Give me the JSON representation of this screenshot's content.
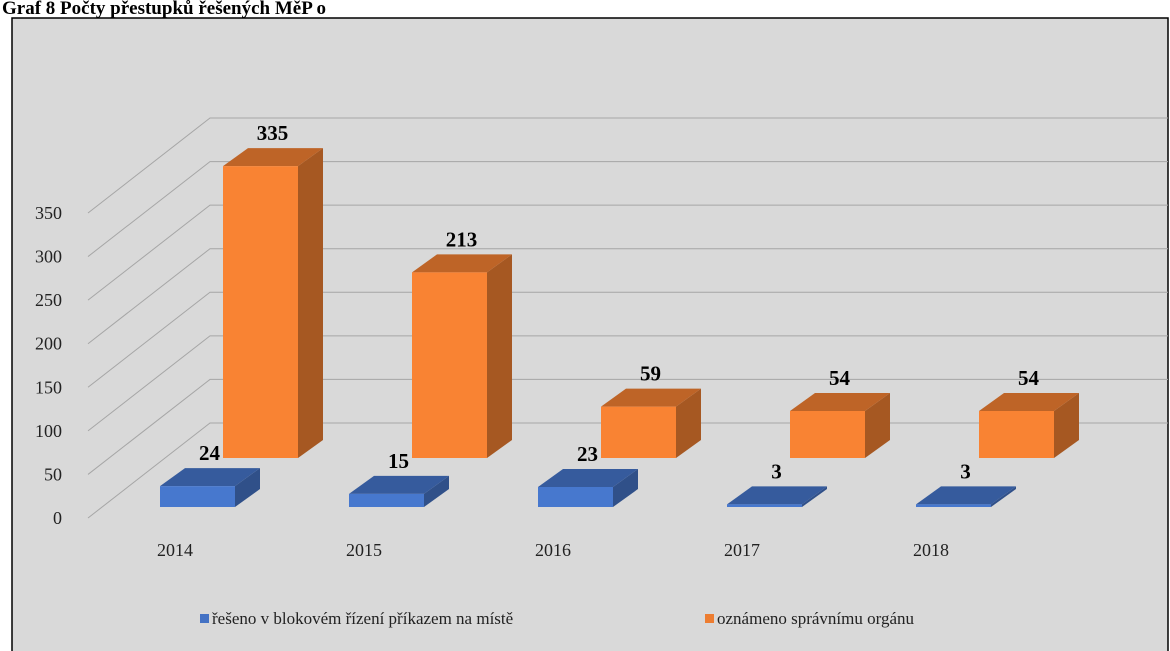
{
  "chart_data": {
    "type": "bar3d",
    "title": "Graf 8 Počty přestupků řešených MěP o",
    "categories": [
      "2014",
      "2015",
      "2016",
      "2017",
      "2018"
    ],
    "series": [
      {
        "name": "řešeno v blokovém řízení příkazem na místě",
        "color": "#4472c4",
        "values": [
          24,
          15,
          23,
          3,
          3
        ]
      },
      {
        "name": "oznámeno správnímu orgánu",
        "color": "#ed7d31",
        "values": [
          335,
          213,
          59,
          54,
          54
        ]
      }
    ],
    "ylim": [
      0,
      350
    ],
    "yticks": [
      0,
      50,
      100,
      150,
      200,
      250,
      300,
      350
    ],
    "grid": true,
    "legend": "bottom"
  }
}
